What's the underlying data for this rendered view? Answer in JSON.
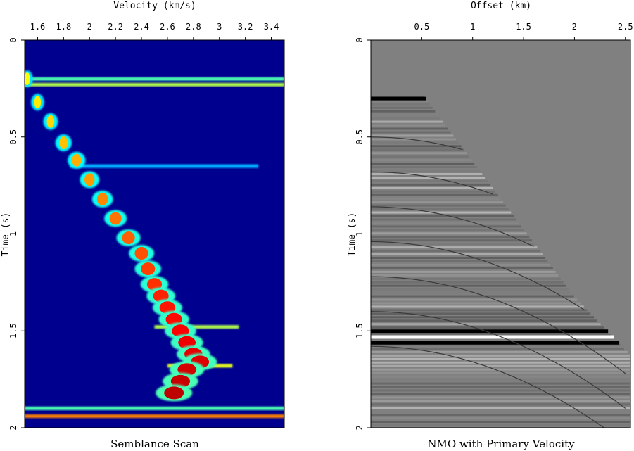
{
  "chart_data": [
    {
      "type": "heatmap",
      "caption": "Semblance Scan",
      "xlabel": "Velocity (km/s)",
      "ylabel": "Time (s)",
      "x_ticks": [
        "1.6",
        "1.8",
        "2",
        "2.2",
        "2.4",
        "2.6",
        "2.8",
        "3",
        "3.2",
        "3.4"
      ],
      "y_ticks": [
        "0",
        "0.5",
        "1",
        "1.5",
        "2"
      ],
      "xlim": [
        1.5,
        3.5
      ],
      "ylim": [
        0,
        2
      ],
      "x_axis_position": "top",
      "y_reversed": true,
      "colormap": "jet",
      "background_color": "#00008f",
      "picked_trend": {
        "velocity": [
          1.52,
          1.6,
          1.7,
          1.8,
          1.9,
          2.0,
          2.1,
          2.2,
          2.3,
          2.4,
          2.45,
          2.5,
          2.55,
          2.6,
          2.65,
          2.7,
          2.75,
          2.8,
          2.85,
          2.75,
          2.7,
          2.65
        ],
        "time": [
          0.2,
          0.32,
          0.42,
          0.53,
          0.62,
          0.72,
          0.82,
          0.92,
          1.02,
          1.1,
          1.18,
          1.26,
          1.32,
          1.38,
          1.44,
          1.5,
          1.56,
          1.62,
          1.66,
          1.7,
          1.76,
          1.82
        ]
      },
      "horizontal_events": [
        {
          "time": 0.2,
          "velocity_from": 1.5,
          "velocity_to": 3.5,
          "strength": 0.45
        },
        {
          "time": 0.23,
          "velocity_from": 1.5,
          "velocity_to": 3.5,
          "strength": 0.55
        },
        {
          "time": 0.65,
          "velocity_from": 1.85,
          "velocity_to": 3.3,
          "strength": 0.3
        },
        {
          "time": 1.48,
          "velocity_from": 2.5,
          "velocity_to": 3.15,
          "strength": 0.55
        },
        {
          "time": 1.68,
          "velocity_from": 2.6,
          "velocity_to": 3.1,
          "strength": 0.6
        },
        {
          "time": 1.9,
          "velocity_from": 1.5,
          "velocity_to": 3.5,
          "strength": 0.45
        },
        {
          "time": 1.94,
          "velocity_from": 1.5,
          "velocity_to": 3.5,
          "strength": 0.75
        }
      ]
    },
    {
      "type": "heatmap",
      "caption": "NMO with Primary Velocity",
      "xlabel": "Offset (km)",
      "ylabel": "Time (s)",
      "x_ticks": [
        "0.5",
        "1",
        "1.5",
        "2",
        "2.5"
      ],
      "y_ticks": [
        "0",
        "0.5",
        "1",
        "1.5",
        "2"
      ],
      "xlim": [
        0.0,
        2.55
      ],
      "ylim": [
        0,
        2
      ],
      "x_axis_position": "top",
      "y_reversed": true,
      "colormap": "gray",
      "background_color": "#808080",
      "mute_boundary": {
        "offset": [
          0.0,
          0.5,
          1.0,
          1.5,
          2.0,
          2.55
        ],
        "time": [
          0.27,
          0.27,
          0.62,
          0.97,
          1.32,
          1.62
        ]
      },
      "strong_reflectors": [
        {
          "time": 0.3,
          "polarity": "black"
        },
        {
          "time": 1.5,
          "polarity": "black"
        },
        {
          "time": 1.53,
          "polarity": "white"
        },
        {
          "time": 1.56,
          "polarity": "black"
        }
      ]
    }
  ]
}
